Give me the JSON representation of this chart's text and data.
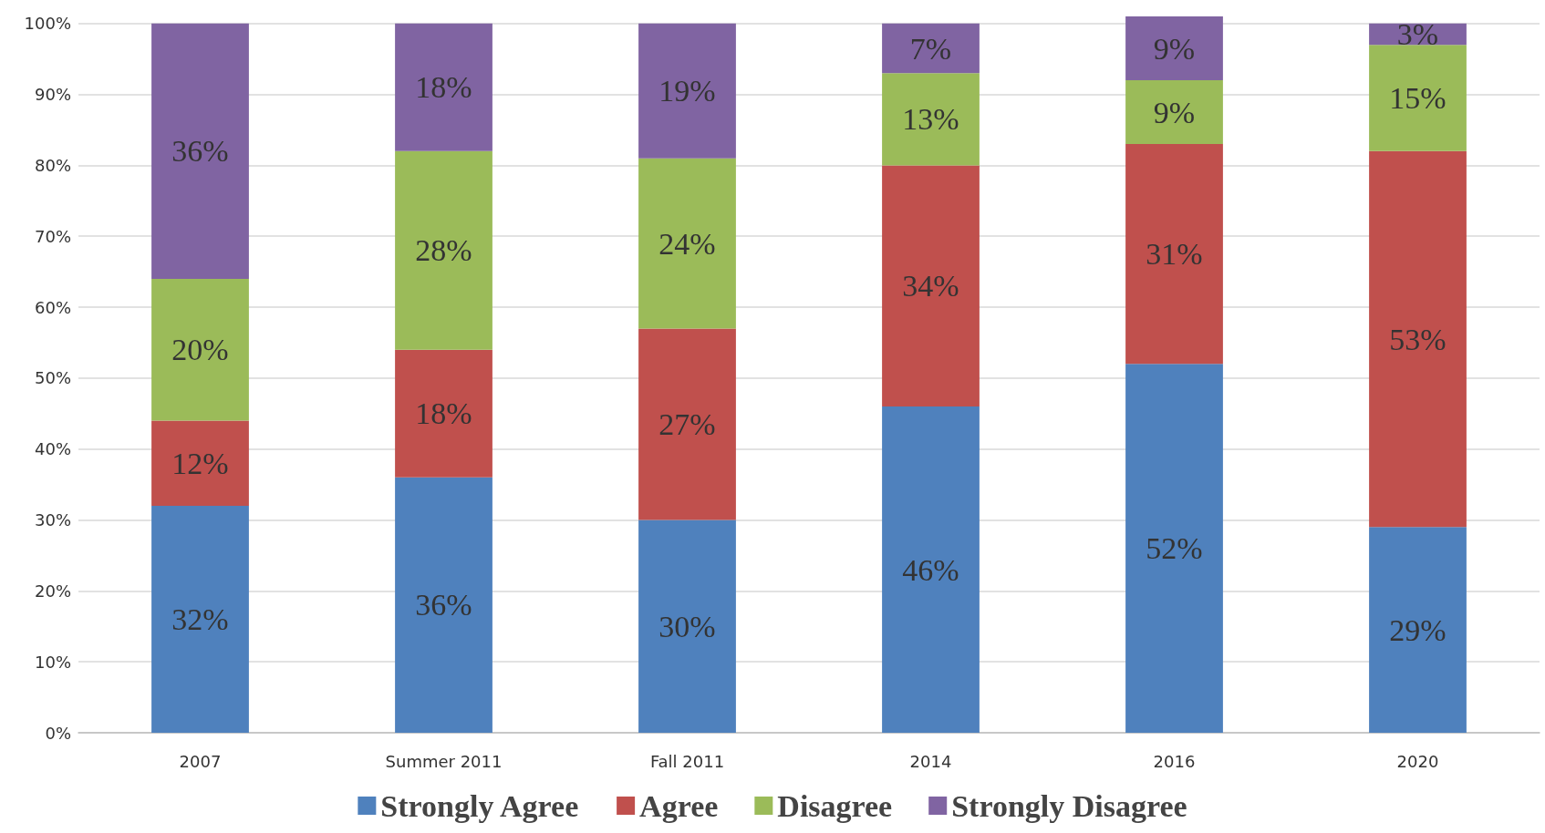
{
  "chart_data": {
    "type": "bar",
    "stacked": true,
    "categories": [
      "2007",
      "Summer 2011",
      "Fall 2011",
      "2014",
      "2016",
      "2020"
    ],
    "series": [
      {
        "name": "Strongly Agree",
        "color": "#4f81bd",
        "values": [
          32,
          36,
          30,
          46,
          52,
          29
        ],
        "value_labels": [
          "32%",
          "36%",
          "30%",
          "46%",
          "52%",
          "29%"
        ]
      },
      {
        "name": "Agree",
        "color": "#c0504d",
        "values": [
          12,
          18,
          27,
          34,
          31,
          53
        ],
        "value_labels": [
          "12%",
          "18%",
          "27%",
          "34%",
          "31%",
          "53%"
        ]
      },
      {
        "name": "Disagree",
        "color": "#9bbb59",
        "values": [
          20,
          28,
          24,
          13,
          9,
          15
        ],
        "value_labels": [
          "20%",
          "28%",
          "24%",
          "13%",
          "9%",
          "15%"
        ]
      },
      {
        "name": "Strongly Disagree",
        "color": "#8064a2",
        "values": [
          36,
          18,
          19,
          7,
          9,
          3
        ],
        "value_labels": [
          "36%",
          "18%",
          "19%",
          "7%",
          "9%",
          "3%"
        ]
      }
    ],
    "ylim": [
      0,
      101
    ],
    "yticks": [
      {
        "value": 0,
        "label": "0%"
      },
      {
        "value": 10,
        "label": "10%"
      },
      {
        "value": 20,
        "label": "20%"
      },
      {
        "value": 30,
        "label": "30%"
      },
      {
        "value": 40,
        "label": "40%"
      },
      {
        "value": 50,
        "label": "50%"
      },
      {
        "value": 60,
        "label": "60%"
      },
      {
        "value": 70,
        "label": "70%"
      },
      {
        "value": 80,
        "label": "80%"
      },
      {
        "value": 90,
        "label": "90%"
      },
      {
        "value": 100,
        "label": "100%"
      }
    ],
    "grid": "y",
    "legend": "bottom"
  }
}
